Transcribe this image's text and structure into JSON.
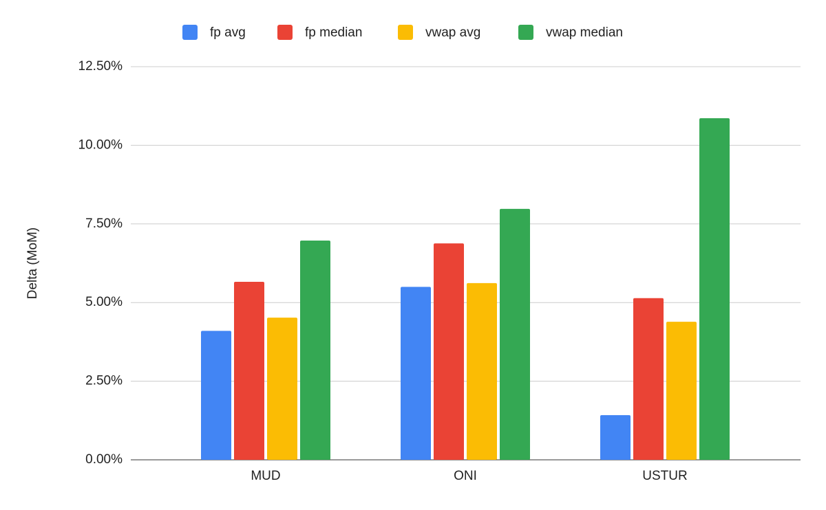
{
  "chart_data": {
    "type": "bar",
    "y_label": "Delta (MoM)",
    "categories": [
      "MUD",
      "ONI",
      "USTUR"
    ],
    "series": [
      {
        "name": "fp avg",
        "color": "#4285f4",
        "values": [
          4.1,
          5.5,
          1.42
        ]
      },
      {
        "name": "fp median",
        "color": "#ea4335",
        "values": [
          5.66,
          6.88,
          5.14
        ]
      },
      {
        "name": "vwap avg",
        "color": "#fbbc04",
        "values": [
          4.52,
          5.62,
          4.39
        ]
      },
      {
        "name": "vwap median",
        "color": "#34a853",
        "values": [
          6.97,
          7.98,
          10.86
        ]
      }
    ],
    "ylim": [
      0,
      12.5
    ],
    "yticks": [
      {
        "value": 0,
        "label": "0.00%"
      },
      {
        "value": 2.5,
        "label": "2.50%"
      },
      {
        "value": 5,
        "label": "5.00%"
      },
      {
        "value": 7.5,
        "label": "7.50%"
      },
      {
        "value": 10,
        "label": "10.00%"
      },
      {
        "value": 12.5,
        "label": "12.50%"
      }
    ],
    "grid": true,
    "legend": "top"
  }
}
